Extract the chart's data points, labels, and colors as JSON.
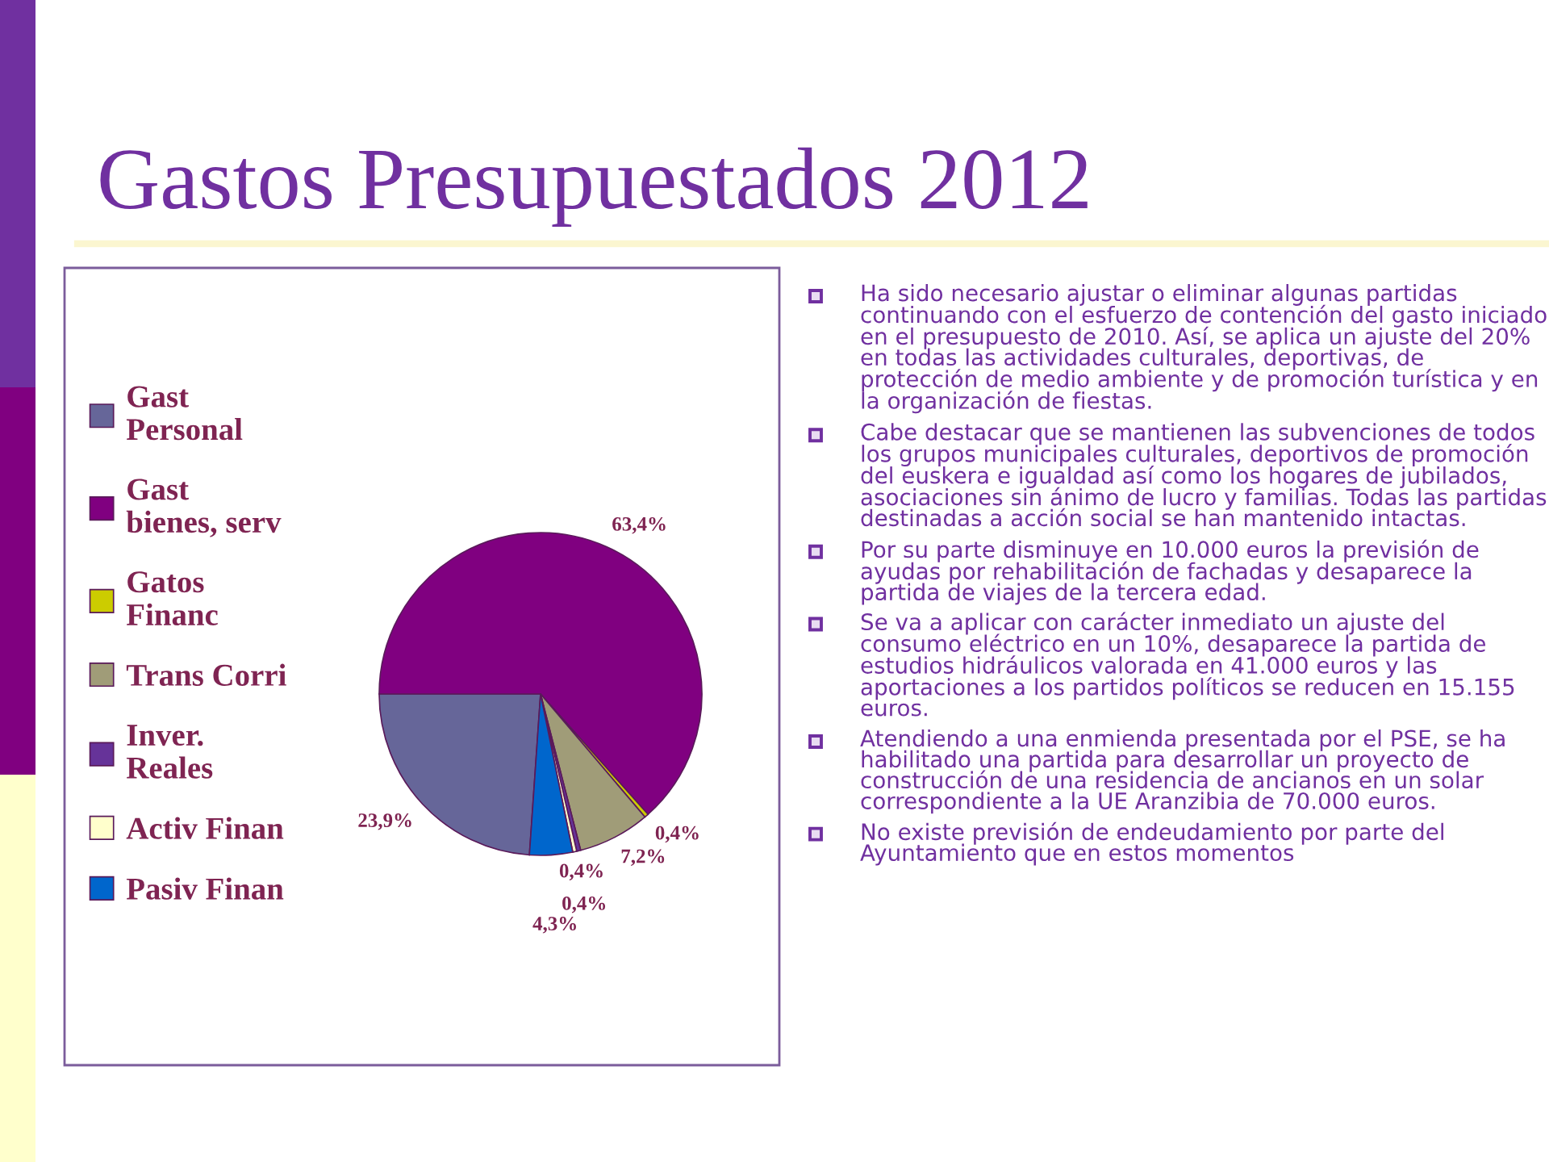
{
  "chart_data": {
    "type": "pie",
    "title": "Gastos Presupuestados 2012",
    "categories": [
      "Gast Personal",
      "Gast bienes, serv",
      "Gatos Financ",
      "Trans Corri",
      "Inver. Reales",
      "Activ Finan",
      "Pasiv Finan"
    ],
    "values": [
      23.9,
      63.4,
      0.4,
      7.2,
      0.4,
      0.4,
      4.3
    ],
    "colors": [
      "#666699",
      "#800080",
      "#cccc00",
      "#a09c78",
      "#663399",
      "#ffffcc",
      "#0066cc"
    ],
    "value_labels": [
      "23,9%",
      "63,4%",
      "0,4%",
      "7,2%",
      "0,4%",
      "0,4%",
      "4,3%"
    ],
    "legend": "left",
    "annotations": [
      "Ha sido necesario ajustar o eliminar algunas partidas continuando con el esfuerzo de contención del gasto iniciado en el presupuesto de 2010. Así, se aplica un ajuste del 20% en todas las actividades culturales, deportivas, de protección de medio ambiente y de promoción turística y en la organización de fiestas.",
      "Cabe destacar que se mantienen las subvenciones de todos los grupos municipales culturales, deportivos de promoción del euskera e igualdad así como los hogares de jubilados, asociaciones sin ánimo de lucro y familias. Todas las partidas destinadas a acción social se han mantenido intactas.",
      "Por su parte disminuye en 10.000 euros la previsión de ayudas por rehabilitación de fachadas y desaparece la partida de viajes de la tercera edad.",
      "Se va a aplicar con carácter inmediato un ajuste del consumo eléctrico en un 10%, desaparece la partida de estudios hidráulicos valorada en 41.000 euros y las aportaciones a los partidos políticos se reducen en 15.155 euros.",
      "Atendiendo a una enmienda presentada por el PSE, se ha habilitado una partida para desarrollar un proyecto de construcción de una residencia de ancianos en un solar correspondiente a la UE Aranzibia de 70.000 euros.",
      "No existe previsión de endeudamiento por parte del Ayuntamiento que en estos momentos"
    ]
  }
}
